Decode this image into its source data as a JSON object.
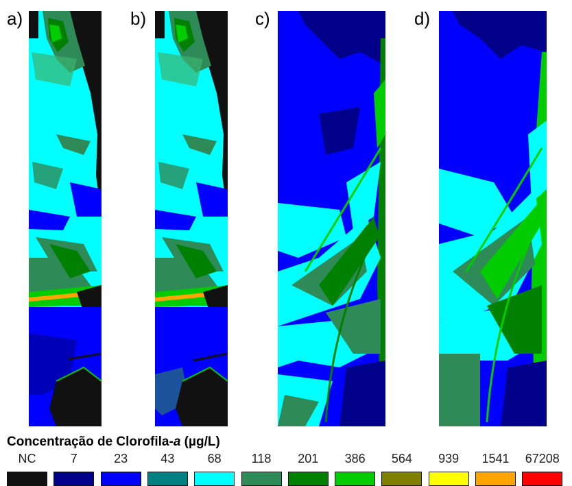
{
  "panels": [
    {
      "label": "a)"
    },
    {
      "label": "b)"
    },
    {
      "label": "c)"
    },
    {
      "label": "d)"
    }
  ],
  "legend": {
    "title_prefix": "Concentração de Clorofila-",
    "title_italic": "a",
    "title_suffix": " (µg/L)",
    "classes": [
      {
        "value": "NC",
        "color": "#111111"
      },
      {
        "value": "7",
        "color": "#00008b"
      },
      {
        "value": "23",
        "color": "#0000ff"
      },
      {
        "value": "43",
        "color": "#008080"
      },
      {
        "value": "68",
        "color": "#00ffff"
      },
      {
        "value": "118",
        "color": "#2e8b57"
      },
      {
        "value": "201",
        "color": "#008000"
      },
      {
        "value": "386",
        "color": "#00cc00"
      },
      {
        "value": "564",
        "color": "#808000"
      },
      {
        "value": "939",
        "color": "#ffff00"
      },
      {
        "value": "1541",
        "color": "#ffa500"
      },
      {
        "value": "67208",
        "color": "#ff0000"
      }
    ]
  }
}
